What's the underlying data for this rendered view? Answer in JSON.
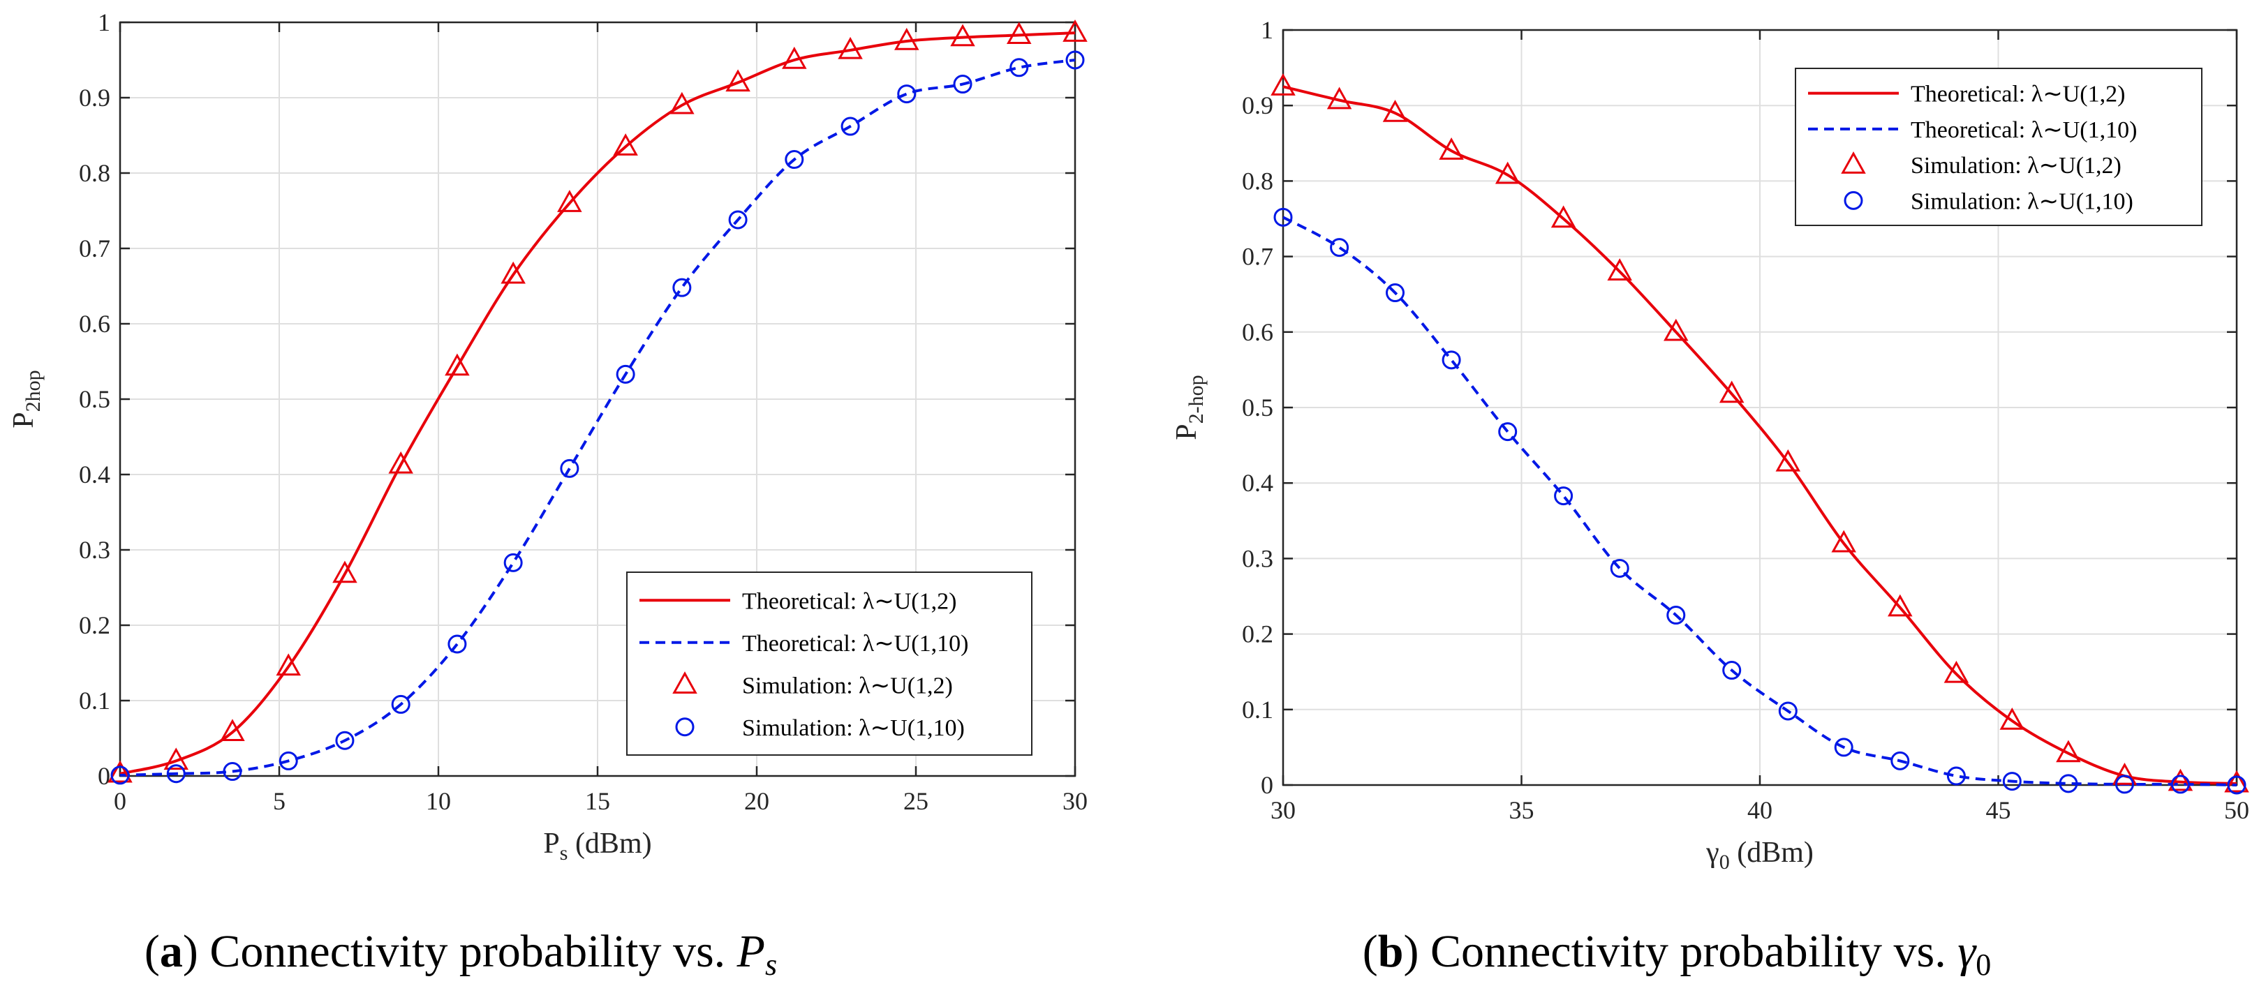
{
  "chart_data": [
    {
      "type": "line",
      "panel": "a",
      "caption": {
        "letter": "a",
        "text": "Connectivity probability vs.",
        "symbol": "P",
        "symbol_sub": "s"
      },
      "xlabel": {
        "main": "P",
        "sub": "s",
        "rest": " (dBm)"
      },
      "ylabel": {
        "main": "P",
        "sub": "2hop"
      },
      "xlim": [
        0,
        30
      ],
      "ylim": [
        0,
        1
      ],
      "xticks": [
        "0",
        "5",
        "10",
        "15",
        "20",
        "25",
        "30"
      ],
      "yticks": [
        "0",
        "0.1",
        "0.2",
        "0.3",
        "0.4",
        "0.5",
        "0.6",
        "0.7",
        "0.8",
        "0.9",
        "1"
      ],
      "grid": true,
      "legend_position": "bottom-right",
      "x": [
        0,
        1.76,
        3.53,
        5.29,
        7.06,
        8.82,
        10.59,
        12.35,
        14.12,
        15.88,
        17.65,
        19.41,
        21.18,
        22.94,
        24.71,
        26.47,
        28.24,
        30
      ],
      "series": [
        {
          "name": "Theoretical: λ∼U(1,2)",
          "style": "solid",
          "color": "#e8000b",
          "values": [
            0.003,
            0.02,
            0.058,
            0.145,
            0.268,
            0.413,
            0.543,
            0.665,
            0.76,
            0.835,
            0.89,
            0.92,
            0.95,
            0.963,
            0.975,
            0.98,
            0.983,
            0.986
          ]
        },
        {
          "name": "Theoretical: λ∼U(1,10)",
          "style": "dashed",
          "color": "#0018e6",
          "values": [
            0.001,
            0.003,
            0.006,
            0.02,
            0.047,
            0.095,
            0.175,
            0.283,
            0.408,
            0.533,
            0.648,
            0.738,
            0.818,
            0.862,
            0.905,
            0.918,
            0.94,
            0.95
          ]
        },
        {
          "name": "Simulation: λ∼U(1,2)",
          "style": "triangle",
          "color": "#e8000b",
          "values": [
            0.003,
            0.02,
            0.058,
            0.145,
            0.268,
            0.413,
            0.543,
            0.665,
            0.76,
            0.835,
            0.89,
            0.92,
            0.95,
            0.963,
            0.975,
            0.98,
            0.983,
            0.986
          ]
        },
        {
          "name": "Simulation: λ∼U(1,10)",
          "style": "circle",
          "color": "#0018e6",
          "values": [
            0.001,
            0.003,
            0.006,
            0.02,
            0.047,
            0.095,
            0.175,
            0.283,
            0.408,
            0.533,
            0.648,
            0.738,
            0.818,
            0.862,
            0.905,
            0.918,
            0.94,
            0.95
          ]
        }
      ]
    },
    {
      "type": "line",
      "panel": "b",
      "caption": {
        "letter": "b",
        "text": "Connectivity probability vs.",
        "symbol": "γ",
        "symbol_sub": "0"
      },
      "xlabel": {
        "main": "γ",
        "sub": "0",
        "rest": " (dBm)"
      },
      "ylabel": {
        "main": "P",
        "sub": "2-hop"
      },
      "xlim": [
        30,
        50
      ],
      "ylim": [
        0,
        1
      ],
      "xticks": [
        "30",
        "35",
        "40",
        "45",
        "50"
      ],
      "yticks": [
        "0",
        "0.1",
        "0.2",
        "0.3",
        "0.4",
        "0.5",
        "0.6",
        "0.7",
        "0.8",
        "0.9",
        "1"
      ],
      "grid": true,
      "legend_position": "top-right",
      "x": [
        30,
        31.18,
        32.35,
        33.53,
        34.71,
        35.88,
        37.06,
        38.24,
        39.41,
        40.59,
        41.76,
        42.94,
        44.12,
        45.29,
        46.47,
        47.65,
        48.82,
        50
      ],
      "series": [
        {
          "name": "Theoretical: λ∼U(1,2)",
          "style": "solid",
          "color": "#e8000b",
          "values": [
            0.925,
            0.907,
            0.89,
            0.84,
            0.808,
            0.75,
            0.68,
            0.6,
            0.518,
            0.427,
            0.32,
            0.235,
            0.147,
            0.085,
            0.042,
            0.012,
            0.004,
            0.002
          ]
        },
        {
          "name": "Theoretical: λ∼U(1,10)",
          "style": "dashed",
          "color": "#0018e6",
          "values": [
            0.752,
            0.712,
            0.652,
            0.563,
            0.468,
            0.383,
            0.287,
            0.225,
            0.152,
            0.098,
            0.05,
            0.032,
            0.012,
            0.005,
            0.002,
            0.001,
            0.001,
            0.0
          ]
        },
        {
          "name": "Simulation: λ∼U(1,2)",
          "style": "triangle",
          "color": "#e8000b",
          "values": [
            0.925,
            0.907,
            0.89,
            0.84,
            0.808,
            0.75,
            0.68,
            0.6,
            0.518,
            0.427,
            0.32,
            0.235,
            0.147,
            0.085,
            0.042,
            0.012,
            0.004,
            0.002
          ]
        },
        {
          "name": "Simulation: λ∼U(1,10)",
          "style": "circle",
          "color": "#0018e6",
          "values": [
            0.752,
            0.712,
            0.652,
            0.563,
            0.468,
            0.383,
            0.287,
            0.225,
            0.152,
            0.098,
            0.05,
            0.032,
            0.012,
            0.005,
            0.002,
            0.001,
            0.001,
            0.0
          ]
        }
      ]
    }
  ]
}
